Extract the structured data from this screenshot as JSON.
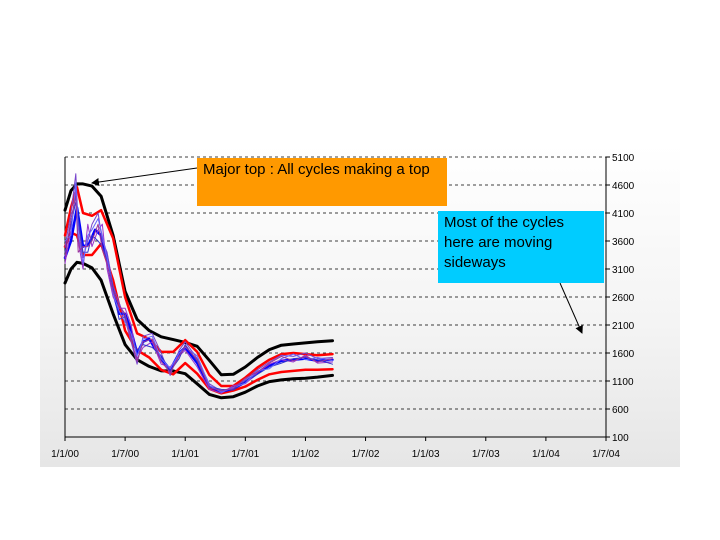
{
  "chart_data": {
    "type": "line",
    "title": "",
    "xlabel": "",
    "ylabel": "",
    "x_ticks": [
      "1/1/00",
      "1/7/00",
      "1/1/01",
      "1/7/01",
      "1/1/02",
      "1/7/02",
      "1/1/03",
      "1/7/03",
      "1/1/04",
      "1/7/04"
    ],
    "y_ticks": [
      100,
      600,
      1100,
      1600,
      2100,
      2600,
      3100,
      3600,
      4100,
      4600,
      5100
    ],
    "ylim": [
      100,
      5100
    ],
    "x_range": [
      "1/1/00",
      "1/7/04"
    ],
    "y_axis_side": "right",
    "grid": "horizontal dashed",
    "annotations": [
      {
        "text": "Major top : All cycles making a top",
        "color": "#ff9900"
      },
      {
        "text": "Most of the cycles here are moving sideways",
        "color": "#00ccff"
      }
    ],
    "series": [
      {
        "color": "#000000",
        "width": 3,
        "x": [
          0,
          0.1,
          0.2,
          0.3,
          0.45,
          0.6,
          0.8,
          1.0,
          1.2,
          1.4,
          1.6,
          1.8,
          2.0,
          2.2,
          2.4,
          2.6,
          2.8,
          3.0,
          3.2,
          3.4,
          3.6,
          3.8,
          4.0,
          4.2,
          4.45
        ],
        "y": [
          4150,
          4500,
          4620,
          4620,
          4580,
          4400,
          3700,
          2700,
          2200,
          2000,
          1890,
          1840,
          1790,
          1720,
          1470,
          1210,
          1220,
          1350,
          1520,
          1660,
          1740,
          1760,
          1780,
          1800,
          1820
        ]
      },
      {
        "color": "#000000",
        "width": 3,
        "x": [
          0,
          0.1,
          0.2,
          0.3,
          0.45,
          0.6,
          0.8,
          1.0,
          1.2,
          1.4,
          1.6,
          1.8,
          2.0,
          2.2,
          2.4,
          2.6,
          2.8,
          3.0,
          3.2,
          3.4,
          3.6,
          3.8,
          4.0,
          4.2,
          4.45
        ],
        "y": [
          2850,
          3100,
          3220,
          3200,
          3120,
          2900,
          2300,
          1750,
          1480,
          1360,
          1280,
          1280,
          1230,
          1050,
          860,
          800,
          820,
          900,
          1010,
          1090,
          1120,
          1140,
          1150,
          1170,
          1200
        ]
      },
      {
        "color": "#ff0000",
        "width": 2.5,
        "x": [
          0,
          0.1,
          0.2,
          0.3,
          0.45,
          0.6,
          0.8,
          1.0,
          1.2,
          1.4,
          1.6,
          1.8,
          2.0,
          2.2,
          2.4,
          2.6,
          2.8,
          3.0,
          3.2,
          3.4,
          3.6,
          3.8,
          4.0,
          4.2,
          4.45
        ],
        "y": [
          3700,
          4200,
          4560,
          4100,
          4050,
          4150,
          3650,
          2600,
          1950,
          1850,
          1620,
          1620,
          1830,
          1620,
          1210,
          1010,
          1010,
          1160,
          1340,
          1480,
          1580,
          1600,
          1580,
          1560,
          1580
        ]
      },
      {
        "color": "#ff0000",
        "width": 2.5,
        "x": [
          0,
          0.1,
          0.2,
          0.3,
          0.45,
          0.6,
          0.8,
          1.0,
          1.2,
          1.4,
          1.6,
          1.8,
          2.0,
          2.2,
          2.4,
          2.6,
          2.8,
          3.0,
          3.2,
          3.4,
          3.6,
          3.8,
          4.0,
          4.2,
          4.45
        ],
        "y": [
          3500,
          3750,
          3700,
          3350,
          3350,
          3550,
          2900,
          2000,
          1650,
          1520,
          1300,
          1220,
          1420,
          1230,
          960,
          880,
          930,
          1000,
          1120,
          1220,
          1260,
          1280,
          1300,
          1300,
          1310
        ]
      },
      {
        "color": "#0000ff",
        "width": 2.5,
        "x": [
          0,
          0.1,
          0.2,
          0.3,
          0.4,
          0.5,
          0.6,
          0.7,
          0.8,
          0.9,
          1.0,
          1.1,
          1.2,
          1.3,
          1.4,
          1.6,
          1.75,
          1.9,
          2.0,
          2.2,
          2.4,
          2.6,
          2.8,
          3.0,
          3.2,
          3.4,
          3.6,
          3.8,
          4.0,
          4.2,
          4.45
        ],
        "y": [
          3300,
          3600,
          4200,
          3500,
          3550,
          3800,
          3700,
          3300,
          2700,
          2300,
          2300,
          2000,
          1600,
          1800,
          1850,
          1500,
          1300,
          1600,
          1700,
          1420,
          1000,
          910,
          960,
          1080,
          1240,
          1380,
          1460,
          1480,
          1500,
          1460,
          1480
        ]
      },
      {
        "color": "#7744cc",
        "width": 1,
        "x": [
          0,
          0.1,
          0.18,
          0.22,
          0.3,
          0.38,
          0.45,
          0.55,
          0.62,
          0.7,
          0.8,
          0.9,
          1.0,
          1.1,
          1.2,
          1.3,
          1.45,
          1.6,
          1.75,
          1.9,
          2.0,
          2.2,
          2.4,
          2.6,
          2.8,
          3.0,
          3.2,
          3.4,
          3.6,
          3.8,
          4.0,
          4.2,
          4.45
        ],
        "y": [
          3500,
          4100,
          4800,
          3900,
          3300,
          3600,
          3900,
          4100,
          3600,
          3400,
          2800,
          2500,
          2200,
          1800,
          1400,
          1900,
          1950,
          1600,
          1200,
          1650,
          1800,
          1500,
          1050,
          920,
          990,
          1120,
          1300,
          1440,
          1560,
          1540,
          1600,
          1500,
          1520
        ]
      },
      {
        "color": "#9933cc",
        "width": 1,
        "x": [
          0,
          0.1,
          0.18,
          0.22,
          0.3,
          0.38,
          0.45,
          0.55,
          0.62,
          0.7,
          0.8,
          0.9,
          1.0,
          1.1,
          1.2,
          1.3,
          1.45,
          1.6,
          1.75,
          1.9,
          2.0,
          2.2,
          2.4,
          2.6,
          2.8,
          3.0,
          3.2,
          3.4,
          3.6,
          3.8,
          4.0,
          4.2,
          4.45
        ],
        "y": [
          3200,
          3800,
          4500,
          3600,
          3100,
          3900,
          3500,
          3800,
          3900,
          3100,
          2600,
          2400,
          2400,
          2100,
          1500,
          1700,
          1800,
          1400,
          1350,
          1550,
          1650,
          1350,
          950,
          880,
          1020,
          1050,
          1250,
          1400,
          1480,
          1440,
          1560,
          1420,
          1440
        ]
      },
      {
        "color": "#3333cc",
        "width": 1,
        "x": [
          0,
          0.1,
          0.18,
          0.22,
          0.3,
          0.38,
          0.45,
          0.55,
          0.62,
          0.7,
          0.8,
          0.9,
          1.0,
          1.1,
          1.2,
          1.3,
          1.45,
          1.6,
          1.75,
          1.9,
          2.0,
          2.2,
          2.4,
          2.6,
          2.8,
          3.0,
          3.2,
          3.4,
          3.6,
          3.8,
          4.0,
          4.2,
          4.45
        ],
        "y": [
          3400,
          3900,
          4300,
          4000,
          3400,
          3400,
          3700,
          3600,
          3500,
          3250,
          2750,
          2200,
          2250,
          1900,
          1650,
          1750,
          1700,
          1550,
          1280,
          1500,
          1750,
          1450,
          1000,
          950,
          940,
          1100,
          1220,
          1350,
          1420,
          1500,
          1520,
          1480,
          1400
        ]
      },
      {
        "color": "#6666ff",
        "width": 1,
        "x": [
          0,
          0.1,
          0.18,
          0.22,
          0.3,
          0.38,
          0.45,
          0.55,
          0.62,
          0.7,
          0.8,
          0.9,
          1.0,
          1.1,
          1.2,
          1.3,
          1.45,
          1.6,
          1.75,
          1.9,
          2.0,
          2.2,
          2.4,
          2.6,
          2.8,
          3.0,
          3.2,
          3.4,
          3.6,
          3.8,
          4.0,
          4.2,
          4.45
        ],
        "y": [
          3600,
          3700,
          4650,
          3750,
          3200,
          3700,
          3800,
          4000,
          3700,
          3300,
          2650,
          2350,
          2150,
          1950,
          1550,
          1850,
          1900,
          1500,
          1320,
          1600,
          1700,
          1550,
          1020,
          900,
          980,
          1060,
          1280,
          1320,
          1500,
          1580,
          1480,
          1520,
          1460
        ]
      },
      {
        "color": "#993399",
        "width": 1,
        "x": [
          0,
          0.1,
          0.18,
          0.22,
          0.3,
          0.38,
          0.45,
          0.55,
          0.62,
          0.7,
          0.8,
          0.9,
          1.0,
          1.1,
          1.2,
          1.3,
          1.45,
          1.6,
          1.75,
          1.9,
          2.0,
          2.2,
          2.4,
          2.6,
          2.8,
          3.0,
          3.2,
          3.4,
          3.6,
          3.8,
          4.0,
          4.2,
          4.45
        ],
        "y": [
          3300,
          4000,
          4400,
          3400,
          3500,
          3500,
          3600,
          3900,
          3450,
          3200,
          2700,
          2450,
          2300,
          1850,
          1450,
          1800,
          1850,
          1450,
          1250,
          1550,
          1720,
          1480,
          980,
          930,
          960,
          1150,
          1260,
          1420,
          1540,
          1460,
          1540,
          1440,
          1500
        ]
      }
    ]
  },
  "callouts": {
    "top_text": "Major top : All cycles making a top",
    "side_text": "Most of the cycles here are moving sideways"
  }
}
